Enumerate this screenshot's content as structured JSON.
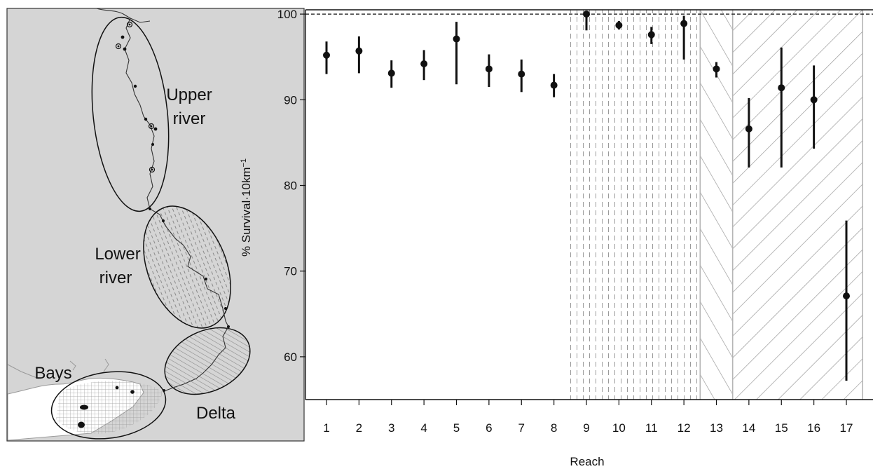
{
  "map": {
    "regions": [
      {
        "key": "upper",
        "label_lines": [
          "Upper",
          "river"
        ]
      },
      {
        "key": "lower",
        "label_lines": [
          "Lower",
          "river"
        ]
      },
      {
        "key": "delta",
        "label_lines": [
          "Delta"
        ]
      },
      {
        "key": "bays",
        "label_lines": [
          "Bays"
        ]
      }
    ]
  },
  "chart_data": {
    "type": "scatter",
    "xlabel": "Reach",
    "ylabel": "% Survival·10km",
    "ylabel_superscript": "−1",
    "ylim": [
      55,
      100.5
    ],
    "yticks": [
      60,
      70,
      80,
      90,
      100
    ],
    "reference_line": 100,
    "categories": [
      "1",
      "2",
      "3",
      "4",
      "5",
      "6",
      "7",
      "8",
      "9",
      "10",
      "11",
      "12",
      "13",
      "14",
      "15",
      "16",
      "17"
    ],
    "series": [
      {
        "point": [
          95.2,
          95.7,
          93.1,
          94.2,
          97.1,
          93.6,
          93.0,
          91.7,
          100.0,
          98.7,
          97.6,
          98.9,
          93.6,
          86.6,
          91.4,
          90.0,
          67.1
        ],
        "lower": [
          93.0,
          93.1,
          91.4,
          92.3,
          91.8,
          91.5,
          90.9,
          90.3,
          98.1,
          98.2,
          96.5,
          94.7,
          92.6,
          82.1,
          82.1,
          84.3,
          57.2
        ],
        "upper": [
          96.8,
          97.4,
          94.6,
          95.8,
          99.1,
          95.3,
          94.7,
          93.0,
          100.0,
          99.2,
          98.5,
          99.8,
          94.4,
          90.2,
          96.1,
          94.0,
          75.9
        ]
      }
    ],
    "shaded_regions": [
      {
        "region": "lower",
        "from_reach": 9,
        "to_reach": 12
      },
      {
        "region": "delta",
        "from_reach": 13,
        "to_reach": 13
      },
      {
        "region": "bays",
        "from_reach": 14,
        "to_reach": 17
      }
    ],
    "grid": false,
    "legend": "none"
  }
}
